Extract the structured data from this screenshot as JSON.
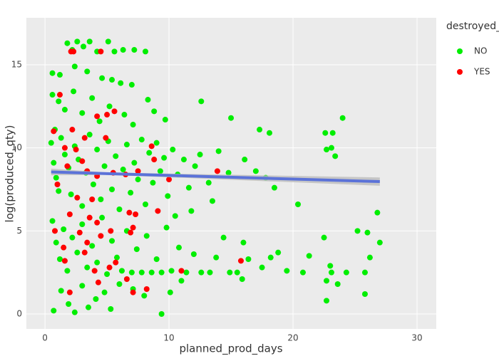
{
  "chart_data": {
    "type": "scatter",
    "xlabel": "planned_prod_days",
    "ylabel": "log(produced_qty)",
    "legend_title": "destroyed_",
    "xlim": [
      -1.5,
      31.55
    ],
    "ylim": [
      -0.9,
      17.83
    ],
    "xticks": [
      0,
      10,
      20,
      30
    ],
    "yticks": [
      0,
      5,
      10,
      15
    ],
    "grid": true,
    "series": [
      {
        "name": "NO",
        "color": "#00ee00",
        "x": [
          1.8,
          2.2,
          2.6,
          3.1,
          3.6,
          4.2,
          5.1,
          5.6,
          6.3,
          7.2,
          8.1,
          1.2,
          2.4,
          3.4,
          4.6,
          5.4,
          6.1,
          7.0,
          0.6,
          0.6,
          1.1,
          1.6,
          2.3,
          3.0,
          3.8,
          4.4,
          5.2,
          6.4,
          7.1,
          8.3,
          8.8,
          9.7,
          0.8,
          12.6,
          15.0,
          17.3,
          18.1,
          24.0,
          22.6,
          23.2,
          22.7,
          23.4,
          23.1,
          0.5,
          0.7,
          0.9,
          1.1,
          1.3,
          1.6,
          1.9,
          2.1,
          2.4,
          2.7,
          3.0,
          3.3,
          3.6,
          3.9,
          4.2,
          4.5,
          4.8,
          5.1,
          5.4,
          5.7,
          6.0,
          6.3,
          6.6,
          6.9,
          7.2,
          7.5,
          7.8,
          8.1,
          8.4,
          8.7,
          9.0,
          9.3,
          9.6,
          9.9,
          10.3,
          10.7,
          11.2,
          11.6,
          12.1,
          12.5,
          13.2,
          14.0,
          14.8,
          16.1,
          17.0,
          17.8,
          18.5,
          20.4,
          13.5,
          11.8,
          10.5,
          0.6,
          0.9,
          1.2,
          1.5,
          1.8,
          2.2,
          2.6,
          3.0,
          3.4,
          3.8,
          4.2,
          4.6,
          5.0,
          5.4,
          5.8,
          6.2,
          6.6,
          7.0,
          7.4,
          7.8,
          8.2,
          8.6,
          9.0,
          9.4,
          9.8,
          10.2,
          10.8,
          11.4,
          12.0,
          12.6,
          13.3,
          13.8,
          14.4,
          14.9,
          15.5,
          16.0,
          16.4,
          17.5,
          18.2,
          18.8,
          19.5,
          20.8,
          21.3,
          22.5,
          23.0,
          24.3,
          25.2,
          25.8,
          26.2,
          26.0,
          27.0,
          26.8,
          22.7,
          23.6,
          0.7,
          1.3,
          1.9,
          2.4,
          3.0,
          3.5,
          4.1,
          4.8,
          5.3,
          6.0,
          7.1,
          8.0,
          9.4,
          10.1,
          11.0,
          15.9,
          22.7,
          25.8,
          23.1
        ],
        "y": [
          16.3,
          15.9,
          16.4,
          16.1,
          16.4,
          15.8,
          16.4,
          15.8,
          15.9,
          15.9,
          15.8,
          14.4,
          14.9,
          14.6,
          14.2,
          14.1,
          13.9,
          13.8,
          14.5,
          13.2,
          12.8,
          12.3,
          13.4,
          12.1,
          13.0,
          11.6,
          12.5,
          12.0,
          11.4,
          12.9,
          12.2,
          11.7,
          11.1,
          12.8,
          11.8,
          11.1,
          10.9,
          11.8,
          10.9,
          10.9,
          9.9,
          9.5,
          10.0,
          10.3,
          9.1,
          8.2,
          7.4,
          10.6,
          9.6,
          8.8,
          7.2,
          10.1,
          9.3,
          6.5,
          8.5,
          10.8,
          7.8,
          9.9,
          6.9,
          8.9,
          10.4,
          7.5,
          9.5,
          6.3,
          8.7,
          10.2,
          7.3,
          9.1,
          8.1,
          10.5,
          6.6,
          9.7,
          7.9,
          10.3,
          8.6,
          9.4,
          7.1,
          9.9,
          8.4,
          9.3,
          7.6,
          8.9,
          9.6,
          7.9,
          9.8,
          8.5,
          9.3,
          8.6,
          8.2,
          7.6,
          6.6,
          6.8,
          6.2,
          5.9,
          5.6,
          4.3,
          3.3,
          5.1,
          2.6,
          4.6,
          3.7,
          5.4,
          2.8,
          4.1,
          3.1,
          5.8,
          2.4,
          4.4,
          3.4,
          2.6,
          5.0,
          2.5,
          3.9,
          2.5,
          4.7,
          2.5,
          3.3,
          2.5,
          5.2,
          2.6,
          4.0,
          2.5,
          3.6,
          2.5,
          2.5,
          3.4,
          4.6,
          2.5,
          2.5,
          4.3,
          3.3,
          2.8,
          3.4,
          3.7,
          2.6,
          2.5,
          3.5,
          4.6,
          2.9,
          2.5,
          5.0,
          2.5,
          3.4,
          4.9,
          4.3,
          6.1,
          2.0,
          1.8,
          0.2,
          1.4,
          0.6,
          0.1,
          1.7,
          0.4,
          0.9,
          1.3,
          0.3,
          1.8,
          1.5,
          1.1,
          0,
          1.3,
          2.0,
          2.1,
          0.8,
          1.2,
          2.5
        ]
      },
      {
        "name": "YES",
        "color": "#ff0000",
        "x": [
          2.1,
          2.3,
          4.5,
          1.2,
          5.0,
          5.6,
          4.2,
          0.7,
          2.2,
          3.2,
          1.6,
          2.5,
          3.0,
          4.9,
          1.8,
          3.4,
          4.2,
          5.5,
          6.5,
          8.6,
          7.5,
          13.9,
          8.8,
          1.0,
          2.6,
          3.8,
          6.8,
          7.3,
          2.0,
          4.2,
          0.8,
          2.8,
          3.4,
          4.5,
          5.3,
          9.1,
          1.5,
          3.2,
          6.9,
          1.6,
          10.0,
          11.0,
          15.8,
          5.7,
          4.0,
          6.6,
          8.2,
          7.1,
          2.0,
          4.3,
          5.2,
          7.1,
          3.6
        ],
        "y": [
          15.8,
          15.8,
          15.8,
          13.2,
          12.0,
          12.2,
          11.9,
          11.0,
          11.1,
          10.6,
          10.0,
          9.9,
          9.2,
          10.6,
          8.9,
          8.6,
          8.3,
          8.5,
          8.4,
          10.1,
          8.6,
          8.6,
          9.3,
          7.8,
          7.0,
          6.9,
          6.1,
          6.0,
          6.0,
          5.5,
          5.0,
          4.9,
          4.3,
          4.7,
          5.0,
          6.2,
          4.0,
          3.7,
          4.9,
          3.2,
          8.1,
          2.6,
          3.2,
          3.1,
          2.6,
          2.1,
          1.5,
          1.3,
          1.3,
          1.9,
          2.8,
          5.2,
          5.8
        ]
      }
    ],
    "fit": {
      "color": "#5b72d8",
      "band_color": "#bdbdbd",
      "x": [
        0.5,
        5,
        27
      ],
      "y": [
        8.55,
        8.45,
        7.97
      ],
      "lower": [
        8.35,
        8.38,
        7.72
      ],
      "upper": [
        8.75,
        8.52,
        8.22
      ]
    }
  }
}
